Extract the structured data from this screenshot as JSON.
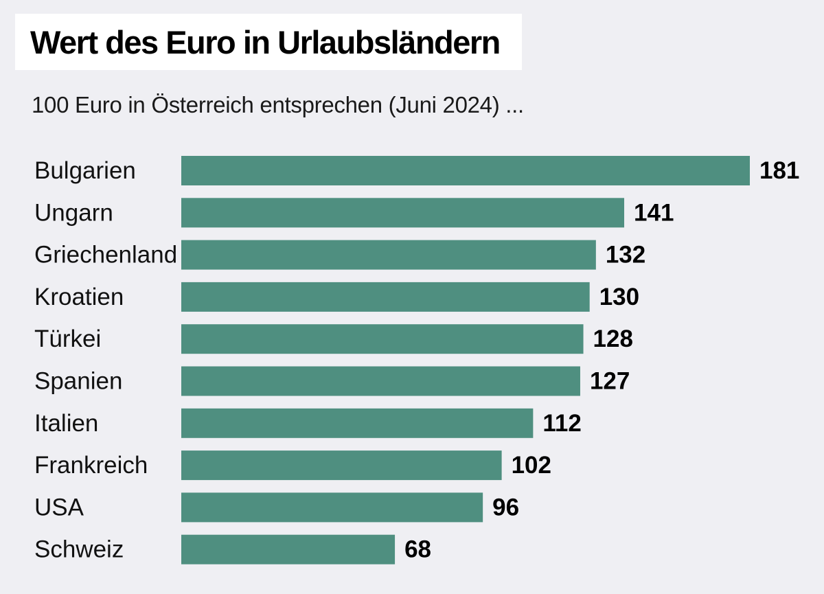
{
  "chart_data": {
    "type": "bar",
    "orientation": "horizontal",
    "title": "Wert des Euro in Urlaubsländern",
    "subtitle": "100 Euro in Österreich entsprechen (Juni 2024) ...",
    "categories": [
      "Bulgarien",
      "Ungarn",
      "Griechenland",
      "Kroatien",
      "Türkei",
      "Spanien",
      "Italien",
      "Frankreich",
      "USA",
      "Schweiz"
    ],
    "values": [
      181,
      141,
      132,
      130,
      128,
      127,
      112,
      102,
      96,
      68
    ],
    "value_labels": [
      "181",
      "141",
      "132",
      "130",
      "128",
      "127",
      "112",
      "102",
      "96",
      "68"
    ],
    "xlim": [
      0,
      181
    ],
    "grid": false,
    "bar_color": "#4f8f80",
    "background_color": "#efeff3"
  }
}
